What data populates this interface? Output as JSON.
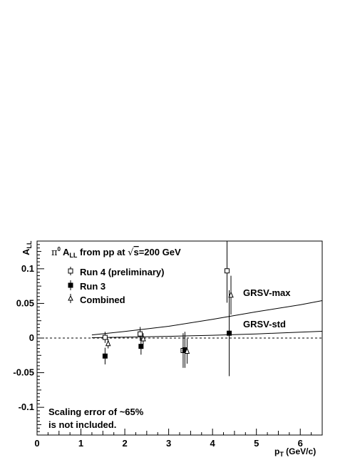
{
  "chart_data": {
    "type": "scatter",
    "title": "A",
    "title_sub": "LL",
    "title_suffix": " from pp at ",
    "sqrt_s": "s",
    "energy": "=200 GeV",
    "pi_symbol": "π",
    "pi_sup": "0",
    "xlabel": "p",
    "xlabel_sub": "T",
    "xlabel_unit": " (GeV/c)",
    "ylabel": "A",
    "ylabel_sub": "LL",
    "xlim": [
      0,
      6.5
    ],
    "ylim": [
      -0.14,
      0.14
    ],
    "x_ticks": [
      "0",
      "1",
      "2",
      "3",
      "4",
      "5",
      "6"
    ],
    "y_ticks": [
      "0.1",
      "0.05",
      "0",
      "-0.05",
      "-0.1"
    ],
    "note": [
      "Scaling error of ~65%",
      "is not included."
    ],
    "series": [
      {
        "name": "Run 4 (preliminary)",
        "marker": "open-square",
        "points": [
          {
            "x": 1.55,
            "y": 0.001,
            "err": 0.008
          },
          {
            "x": 2.35,
            "y": 0.006,
            "err": 0.01
          },
          {
            "x": 3.33,
            "y": -0.018,
            "err": 0.025
          },
          {
            "x": 4.33,
            "y": 0.097,
            "err": 0.046
          }
        ]
      },
      {
        "name": "Run 3",
        "marker": "filled-square",
        "points": [
          {
            "x": 1.55,
            "y": -0.026,
            "err": 0.012
          },
          {
            "x": 2.37,
            "y": -0.012,
            "err": 0.012
          },
          {
            "x": 3.37,
            "y": -0.017,
            "err": 0.026
          },
          {
            "x": 4.38,
            "y": 0.007,
            "err": 0.062
          }
        ]
      },
      {
        "name": "Combined",
        "marker": "open-triangle",
        "points": [
          {
            "x": 1.62,
            "y": -0.008,
            "err": 0.007
          },
          {
            "x": 2.42,
            "y": -0.001,
            "err": 0.008
          },
          {
            "x": 3.42,
            "y": -0.019,
            "err": 0.018
          },
          {
            "x": 4.42,
            "y": 0.062,
            "err": 0.028
          }
        ]
      }
    ],
    "curves": [
      {
        "name": "GRSV-max",
        "x": [
          1.25,
          2,
          3,
          4,
          5,
          6,
          6.5
        ],
        "y": [
          0.0045,
          0.0095,
          0.017,
          0.027,
          0.038,
          0.048,
          0.054
        ]
      },
      {
        "name": "GRSV-std",
        "x": [
          1.25,
          2,
          3,
          4,
          5,
          6,
          6.5
        ],
        "y": [
          0.0005,
          0.0012,
          0.0025,
          0.004,
          0.006,
          0.0085,
          0.0098
        ]
      }
    ]
  }
}
